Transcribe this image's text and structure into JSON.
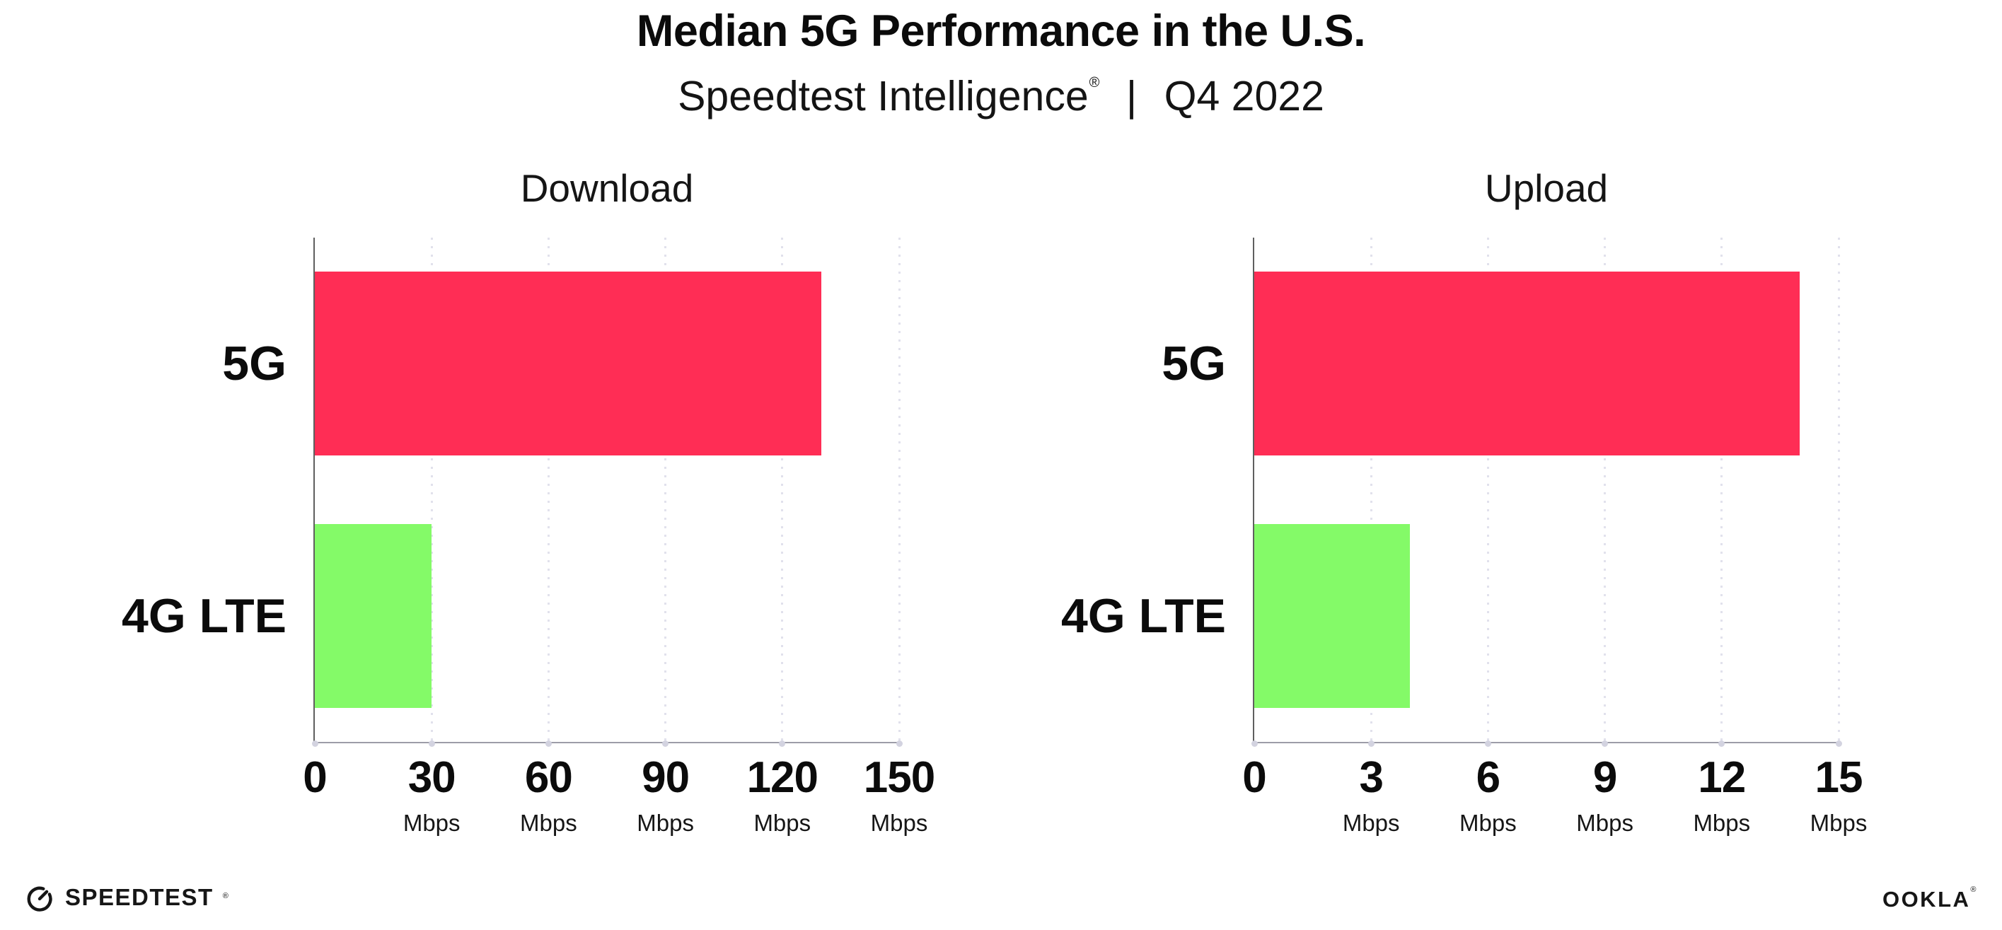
{
  "header": {
    "title": "Median 5G Performance in the U.S.",
    "subtitle": {
      "product": "Speedtest Intelligence",
      "reg_mark": "®",
      "separator": "|",
      "period": "Q4 2022"
    }
  },
  "chart_data": [
    {
      "type": "bar",
      "orientation": "horizontal",
      "title": "Download",
      "categories": [
        "5G",
        "4G LTE"
      ],
      "values": [
        130,
        30
      ],
      "xlabel": "",
      "ylabel": "",
      "unit": "Mbps",
      "xlim": [
        0,
        150
      ],
      "xticks": [
        0,
        30,
        60,
        90,
        120,
        150
      ],
      "xtick_unit_label": "Mbps",
      "bar_colors": [
        "#ff2d55",
        "#84fa68"
      ],
      "grid": "dotted-vertical",
      "legend": "none"
    },
    {
      "type": "bar",
      "orientation": "horizontal",
      "title": "Upload",
      "categories": [
        "5G",
        "4G LTE"
      ],
      "values": [
        14,
        4
      ],
      "xlabel": "",
      "ylabel": "",
      "unit": "Mbps",
      "xlim": [
        0,
        15
      ],
      "xticks": [
        0,
        3,
        6,
        9,
        12,
        15
      ],
      "xtick_unit_label": "Mbps",
      "bar_colors": [
        "#ff2d55",
        "#84fa68"
      ],
      "grid": "dotted-vertical",
      "legend": "none"
    }
  ],
  "footer": {
    "speedtest_logo_text": "SPEEDTEST",
    "speedtest_reg_mark": "®",
    "ookla_logo_text": "OOKLA",
    "ookla_reg_mark": "®"
  },
  "colors": {
    "bar_5g": "#ff2d55",
    "bar_4g_lte": "#84fa68",
    "gridline": "#e1e1ec",
    "x_axis_line": "#9d9da8",
    "y_axis_line": "#5f5f5f",
    "text": "#0f0f0f",
    "background": "#ffffff"
  }
}
